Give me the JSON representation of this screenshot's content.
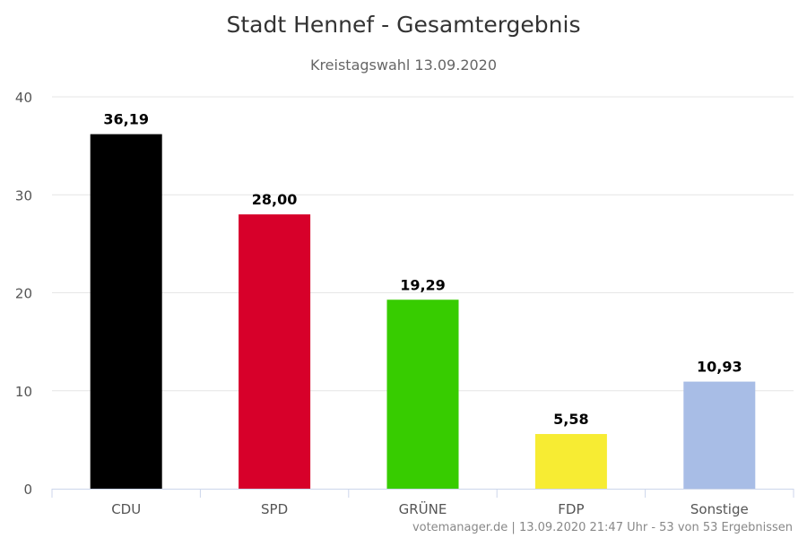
{
  "chart_data": {
    "type": "bar",
    "title": "Stadt Hennef - Gesamtergebnis",
    "subtitle": "Kreistagswahl 13.09.2020",
    "categories": [
      "CDU",
      "SPD",
      "GRÜNE",
      "FDP",
      "Sonstige"
    ],
    "values": [
      36.19,
      28.0,
      19.29,
      5.58,
      10.93
    ],
    "data_labels": [
      "36,19",
      "28,00",
      "19,29",
      "5,58",
      "10,93"
    ],
    "colors": [
      "#000000",
      "#d7002a",
      "#37cc00",
      "#f7ec33",
      "#a8bde6"
    ],
    "ylim": [
      0,
      40
    ],
    "yticks": [
      0,
      10,
      20,
      30,
      40
    ],
    "xlabel": "",
    "ylabel": "",
    "grid": true,
    "legend": "none"
  },
  "footer": {
    "credits": "votemanager.de | 13.09.2020 21:47 Uhr - 53 von 53 Ergebnissen"
  },
  "style": {
    "title_color": "#333333",
    "subtitle_color": "#666666",
    "tick_color": "#555555",
    "grid_color": "#e6e6e6",
    "axis_color": "#ccd6eb",
    "label_color": "#000000",
    "credits_color": "#888888"
  }
}
